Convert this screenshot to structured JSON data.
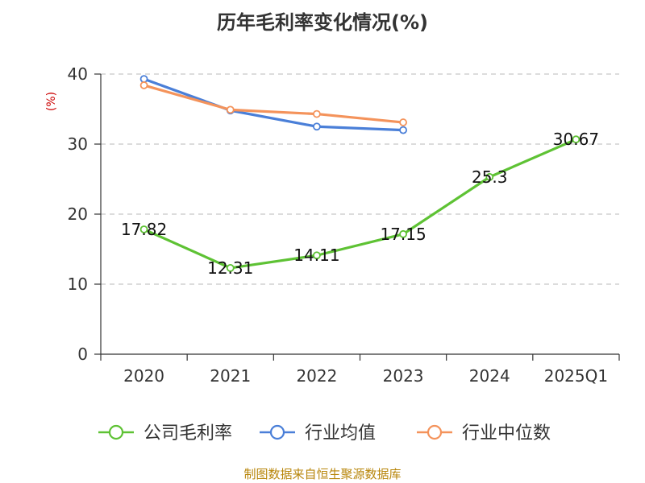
{
  "chart_data": {
    "type": "line",
    "title": "历年毛利率变化情况(%)",
    "ylabel": "(%)",
    "xlabel": "",
    "categories": [
      "2020",
      "2021",
      "2022",
      "2023",
      "2024",
      "2025Q1"
    ],
    "ylim": [
      0,
      40
    ],
    "yticks": [
      "0",
      "10",
      "20",
      "30",
      "40"
    ],
    "ytick_values": [
      0,
      10,
      20,
      30,
      40
    ],
    "grid": true,
    "legend_position": "bottom",
    "series": [
      {
        "name": "公司毛利率",
        "color": "#5ec234",
        "values": [
          17.82,
          12.31,
          14.11,
          17.15,
          25.3,
          30.67
        ],
        "labels": [
          "17.82",
          "12.31",
          "14.11",
          "17.15",
          "25.3",
          "30.67"
        ]
      },
      {
        "name": "行业均值",
        "color": "#4a7fd8",
        "values": [
          39.3,
          34.8,
          32.5,
          32.0,
          null,
          null
        ],
        "labels": []
      },
      {
        "name": "行业中位数",
        "color": "#f4935b",
        "values": [
          38.4,
          34.9,
          34.3,
          33.1,
          null,
          null
        ],
        "labels": []
      }
    ],
    "source": "制图数据来自恒生聚源数据库"
  }
}
